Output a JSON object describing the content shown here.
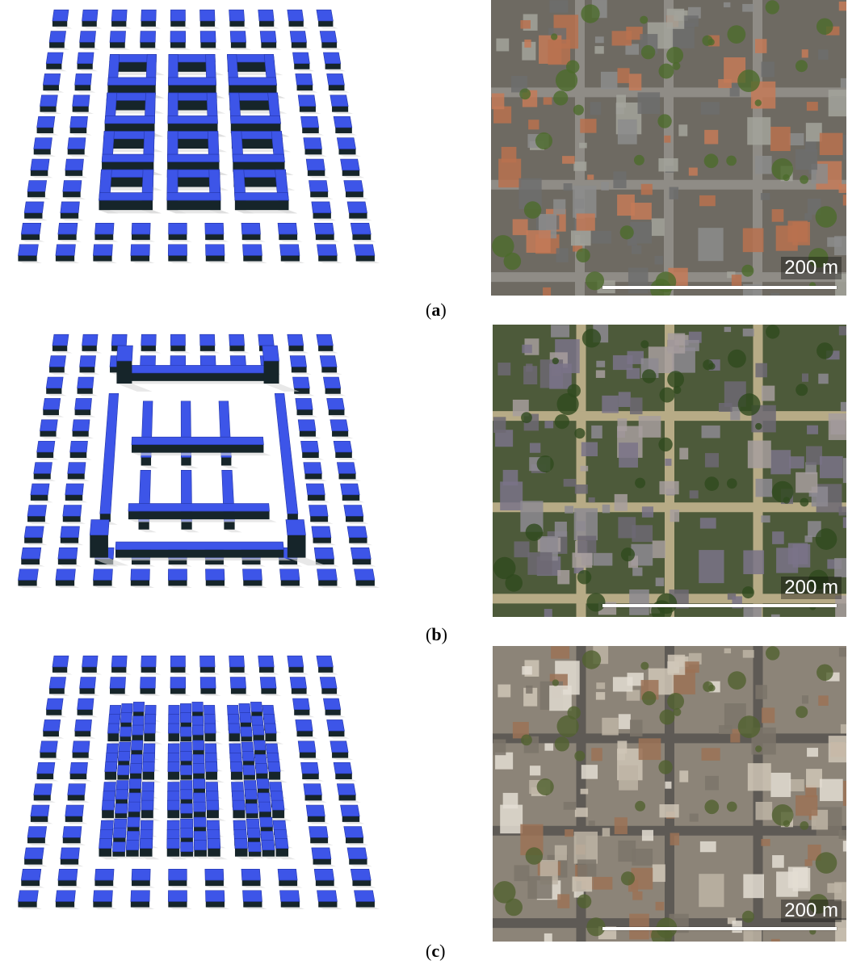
{
  "panels": [
    {
      "id": "a",
      "caption_open": "(",
      "caption_letter": "a",
      "caption_close": ")",
      "model_kind": "courtyard-blocks",
      "photo_kind": "perimeter-blocks",
      "scale_label": "200 m"
    },
    {
      "id": "b",
      "caption_open": "(",
      "caption_letter": "b",
      "caption_close": ")",
      "model_kind": "slab-buildings",
      "photo_kind": "open-slabs",
      "scale_label": "200 m"
    },
    {
      "id": "c",
      "caption_open": "(",
      "caption_letter": "c",
      "caption_close": ")",
      "model_kind": "dense-small-blocks",
      "photo_kind": "dense-city",
      "scale_label": "200 m"
    }
  ],
  "colors": {
    "building_blue": "#3d55e8",
    "building_side": "#16252a",
    "shadow": "#d8d8d8",
    "photo_base_a": "#6e6a62",
    "photo_base_b": "#4d5a3a",
    "photo_base_c": "#8c8478"
  }
}
